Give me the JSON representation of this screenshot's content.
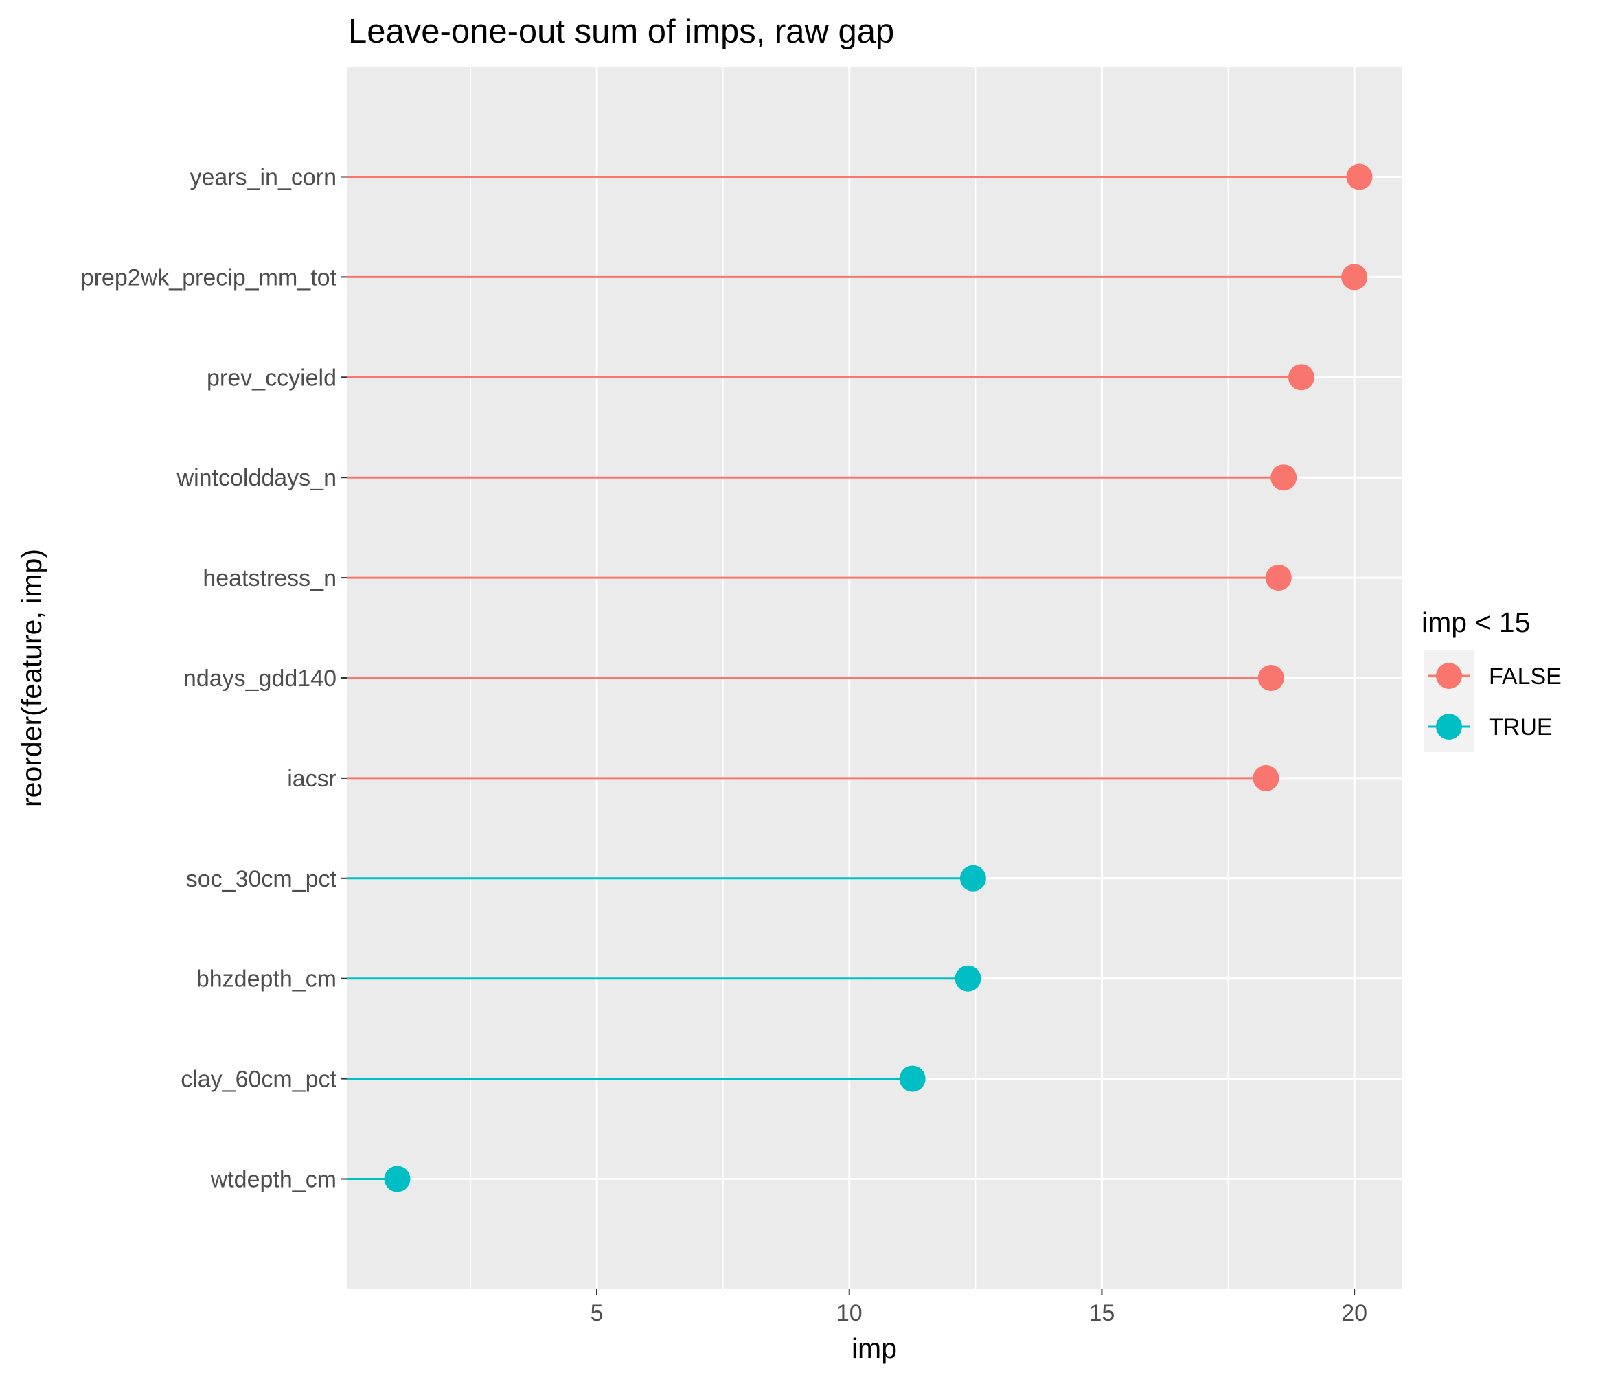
{
  "chart_data": {
    "type": "lollipop",
    "title": "Leave-one-out sum of imps, raw gap",
    "xlabel": "imp",
    "ylabel": "reorder(feature, imp)",
    "xlim": [
      0.05,
      20.95
    ],
    "x_ticks": [
      5,
      10,
      15,
      20
    ],
    "x_tick_labels": [
      "5",
      "10",
      "15",
      "20"
    ],
    "x_minor_ticks": [
      2.5,
      7.5,
      12.5,
      17.5
    ],
    "grid": true,
    "legend": {
      "title": "imp < 15",
      "position": "right",
      "entries": [
        {
          "label": "FALSE",
          "color": "#F8766D"
        },
        {
          "label": "TRUE",
          "color": "#00BFC4"
        }
      ]
    },
    "points": [
      {
        "feature": "years_in_corn",
        "imp": 20.1,
        "group": "FALSE"
      },
      {
        "feature": "prep2wk_precip_mm_tot",
        "imp": 20.0,
        "group": "FALSE"
      },
      {
        "feature": "prev_ccyield",
        "imp": 18.95,
        "group": "FALSE"
      },
      {
        "feature": "wintcolddays_n",
        "imp": 18.6,
        "group": "FALSE"
      },
      {
        "feature": "heatstress_n",
        "imp": 18.5,
        "group": "FALSE"
      },
      {
        "feature": "ndays_gdd140",
        "imp": 18.35,
        "group": "FALSE"
      },
      {
        "feature": "iacsr",
        "imp": 18.25,
        "group": "FALSE"
      },
      {
        "feature": "soc_30cm_pct",
        "imp": 12.45,
        "group": "TRUE"
      },
      {
        "feature": "bhzdepth_cm",
        "imp": 12.35,
        "group": "TRUE"
      },
      {
        "feature": "clay_60cm_pct",
        "imp": 11.25,
        "group": "TRUE"
      },
      {
        "feature": "wtdepth_cm",
        "imp": 1.05,
        "group": "TRUE"
      }
    ],
    "colors": {
      "panel_background": "#EBEBEB",
      "grid": "#FFFFFF",
      "FALSE": "#F8766D",
      "TRUE": "#00BFC4"
    }
  }
}
